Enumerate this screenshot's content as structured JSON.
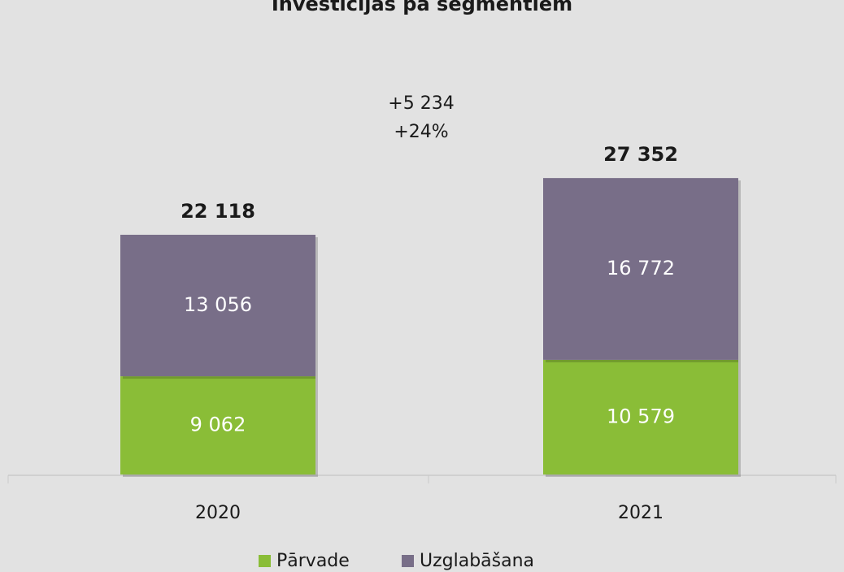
{
  "chart_data": {
    "type": "stacked_bar",
    "title": "Investīcijas pa segmentiem",
    "categories": [
      "2020",
      "2021"
    ],
    "series": [
      {
        "name": "Pārvade",
        "color": "#8abd37",
        "values": [
          9062,
          10579
        ],
        "value_labels": [
          "9 062",
          "10 579"
        ]
      },
      {
        "name": "Uzglabāšana",
        "color": "#786e88",
        "values": [
          13056,
          16772
        ],
        "value_labels": [
          "13 056",
          "16 772"
        ]
      }
    ],
    "totals": [
      22118,
      27352
    ],
    "total_labels": [
      "22 118",
      "27 352"
    ],
    "annotations": [
      "+5 234",
      "+24%"
    ],
    "legend": "bottom"
  }
}
